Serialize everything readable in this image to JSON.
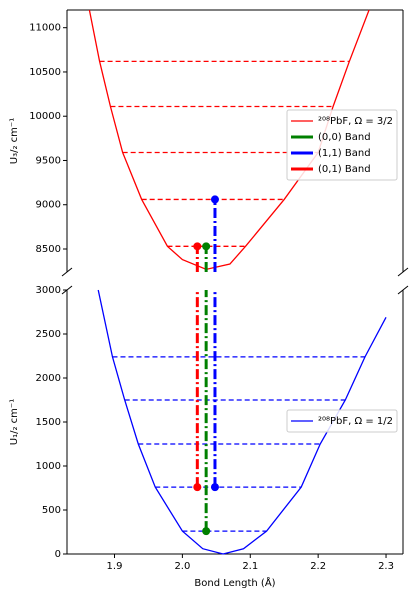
{
  "chart_data": [
    {
      "type": "line",
      "ylabel": "U₃/₂ cm⁻¹",
      "xlim": [
        1.83,
        2.325
      ],
      "ylim": [
        8240,
        11200
      ],
      "yticks": [
        8500,
        9000,
        9500,
        10000,
        10500,
        11000
      ],
      "series": [
        {
          "name": "²⁰⁸PbF, Ω = 3/2",
          "color": "#ff0000",
          "x": [
            1.863,
            1.878,
            1.894,
            1.912,
            1.94,
            1.978,
            2.0,
            2.035,
            2.07,
            2.093,
            2.15,
            2.2,
            2.222,
            2.246,
            2.275
          ],
          "values": [
            11200,
            10620,
            10110,
            9590,
            9060,
            8530,
            8380,
            8270,
            8330,
            8530,
            9060,
            9590,
            10110,
            10620,
            11200
          ]
        }
      ],
      "levels": [
        {
          "values": [
            8530
          ],
          "x": [
            1.978,
            2.093
          ]
        },
        {
          "values": [
            9060
          ],
          "x": [
            1.94,
            2.15
          ]
        },
        {
          "values": [
            9590
          ],
          "x": [
            1.912,
            2.2
          ]
        },
        {
          "values": [
            10110
          ],
          "x": [
            1.894,
            2.222
          ]
        },
        {
          "values": [
            10620
          ],
          "x": [
            1.878,
            2.246
          ]
        }
      ],
      "bands": [
        {
          "name": "(0,0) Band",
          "color": "#008000",
          "x": 2.035,
          "values": [
            260,
            8530
          ]
        },
        {
          "name": "(1,1) Band",
          "color": "#0000ff",
          "x": 2.048,
          "values": [
            760,
            9060
          ]
        },
        {
          "name": "(0,1) Band",
          "color": "#ff0000",
          "x": 2.022,
          "values": [
            760,
            8530
          ]
        }
      ]
    },
    {
      "type": "line",
      "ylabel": "U₁/₂ cm⁻¹",
      "xlabel": "Bond Length (Å)",
      "xlim": [
        1.83,
        2.325
      ],
      "ylim": [
        0,
        3000
      ],
      "xticks": [
        1.9,
        {
          "value": 2,
          "label": "2.0"
        },
        2.1,
        2.2,
        2.3
      ],
      "yticks": [
        0,
        500,
        1000,
        1500,
        2000,
        2500,
        3000
      ],
      "series": [
        {
          "name": "²⁰⁸PbF, Ω = 1/2",
          "color": "#0000ff",
          "x": [
            1.876,
            1.897,
            1.915,
            1.935,
            1.96,
            2.0,
            2.03,
            2.06,
            2.09,
            2.124,
            2.175,
            2.203,
            2.24,
            2.269,
            2.3
          ],
          "values": [
            3000,
            2240,
            1750,
            1250,
            760,
            260,
            60,
            0,
            60,
            260,
            760,
            1250,
            1750,
            2240,
            2690
          ]
        }
      ],
      "levels": [
        {
          "values": [
            260
          ],
          "x": [
            2.0,
            2.124
          ]
        },
        {
          "values": [
            760
          ],
          "x": [
            1.96,
            2.175
          ]
        },
        {
          "values": [
            1250
          ],
          "x": [
            1.935,
            2.203
          ]
        },
        {
          "values": [
            1750
          ],
          "x": [
            1.915,
            2.24
          ]
        },
        {
          "values": [
            2240
          ],
          "x": [
            1.897,
            2.269
          ]
        }
      ]
    }
  ]
}
